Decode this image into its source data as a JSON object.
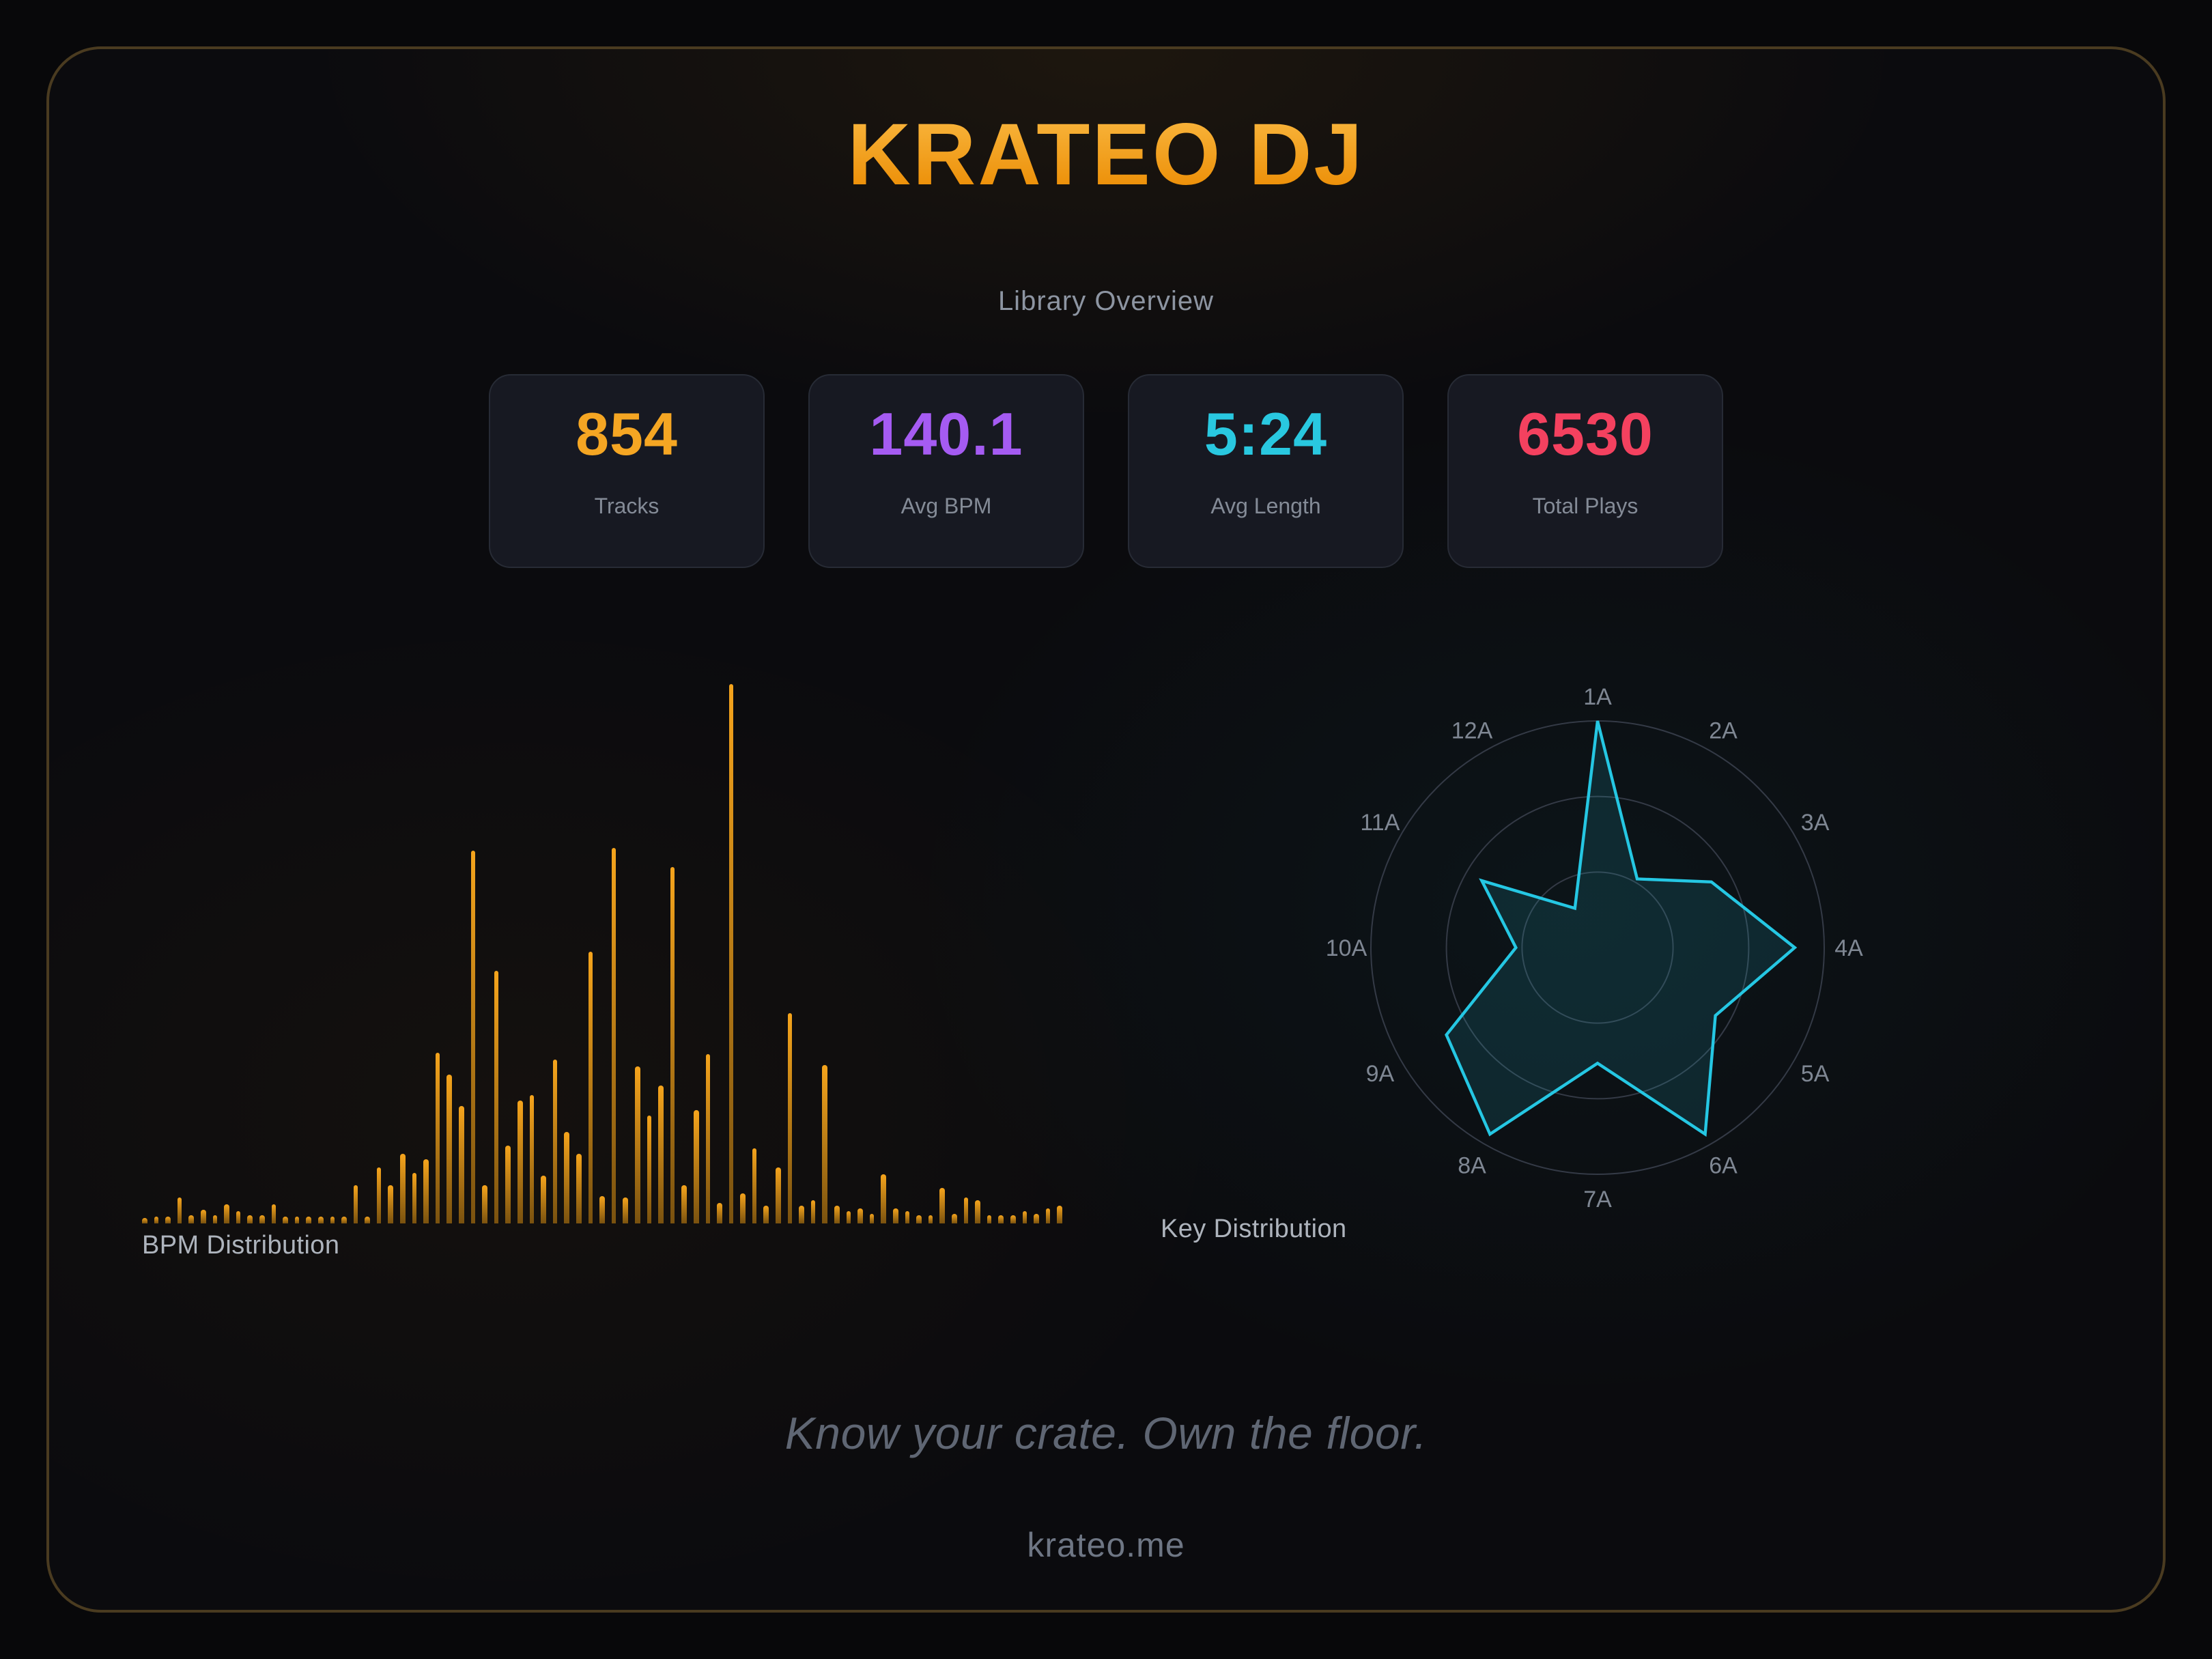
{
  "header": {
    "title": "KRATEO DJ",
    "subtitle": "Library Overview"
  },
  "stats": [
    {
      "value": "854",
      "label": "Tracks",
      "color": "#f5a623"
    },
    {
      "value": "140.1",
      "label": "Avg BPM",
      "color": "#a55bf2"
    },
    {
      "value": "5:24",
      "label": "Avg Length",
      "color": "#29c8e0"
    },
    {
      "value": "6530",
      "label": "Total Plays",
      "color": "#f4415f"
    }
  ],
  "footer": {
    "tagline": "Know your crate. Own the floor.",
    "site": "krateo.me"
  },
  "theme": {
    "panel_border": "#4a3b20",
    "background": "#0b0b0e",
    "accent_orange": "#f5a41c",
    "accent_cyan": "#29c8e0"
  },
  "chart_data": [
    {
      "type": "bar",
      "title": "BPM Distribution",
      "xlabel": "",
      "ylabel": "",
      "axis_labels_shown": false,
      "bar_color_top": "#f5a41c",
      "bar_color_bottom": "#7a520f",
      "values_relative_pct": [
        1.0,
        1.3,
        1.3,
        4.7,
        1.5,
        2.5,
        1.5,
        3.5,
        2.3,
        1.5,
        1.5,
        3.5,
        1.3,
        1.3,
        1.3,
        1.3,
        1.3,
        1.3,
        7.0,
        1.3,
        10.5,
        7.0,
        12.9,
        9.4,
        11.8,
        31.6,
        27.6,
        21.9,
        69.1,
        7.0,
        46.8,
        14.4,
        22.8,
        23.8,
        8.9,
        30.4,
        17.0,
        12.9,
        50.3,
        5.2,
        69.7,
        4.7,
        29.1,
        20.1,
        25.7,
        66.1,
        7.2,
        20.9,
        31.4,
        3.7,
        100,
        5.7,
        13.9,
        3.2,
        10.4,
        39.1,
        3.2,
        4.2,
        29.5,
        3.2,
        2.2,
        2.9,
        1.9,
        9.1,
        2.9,
        2.3,
        1.6,
        1.6,
        6.7,
        1.9,
        4.7,
        4.2,
        1.6,
        1.5,
        1.6,
        2.3,
        1.9,
        2.8,
        3.2
      ]
    },
    {
      "type": "radar",
      "title": "Key Distribution",
      "categories": [
        "1A",
        "2A",
        "3A",
        "4A",
        "5A",
        "6A",
        "7A",
        "8A",
        "9A",
        "10A",
        "11A",
        "12A"
      ],
      "values": [
        1.0,
        0.35,
        0.58,
        0.87,
        0.6,
        0.95,
        0.51,
        0.95,
        0.77,
        0.36,
        0.59,
        0.2
      ],
      "max": 1.0,
      "grid_rings": 3,
      "grid_color": "#343a46",
      "stroke_color": "#25c7e3",
      "fill_color": "rgba(37,199,227,0.13)",
      "label_color": "#7f8793",
      "legend_position": "none"
    }
  ]
}
